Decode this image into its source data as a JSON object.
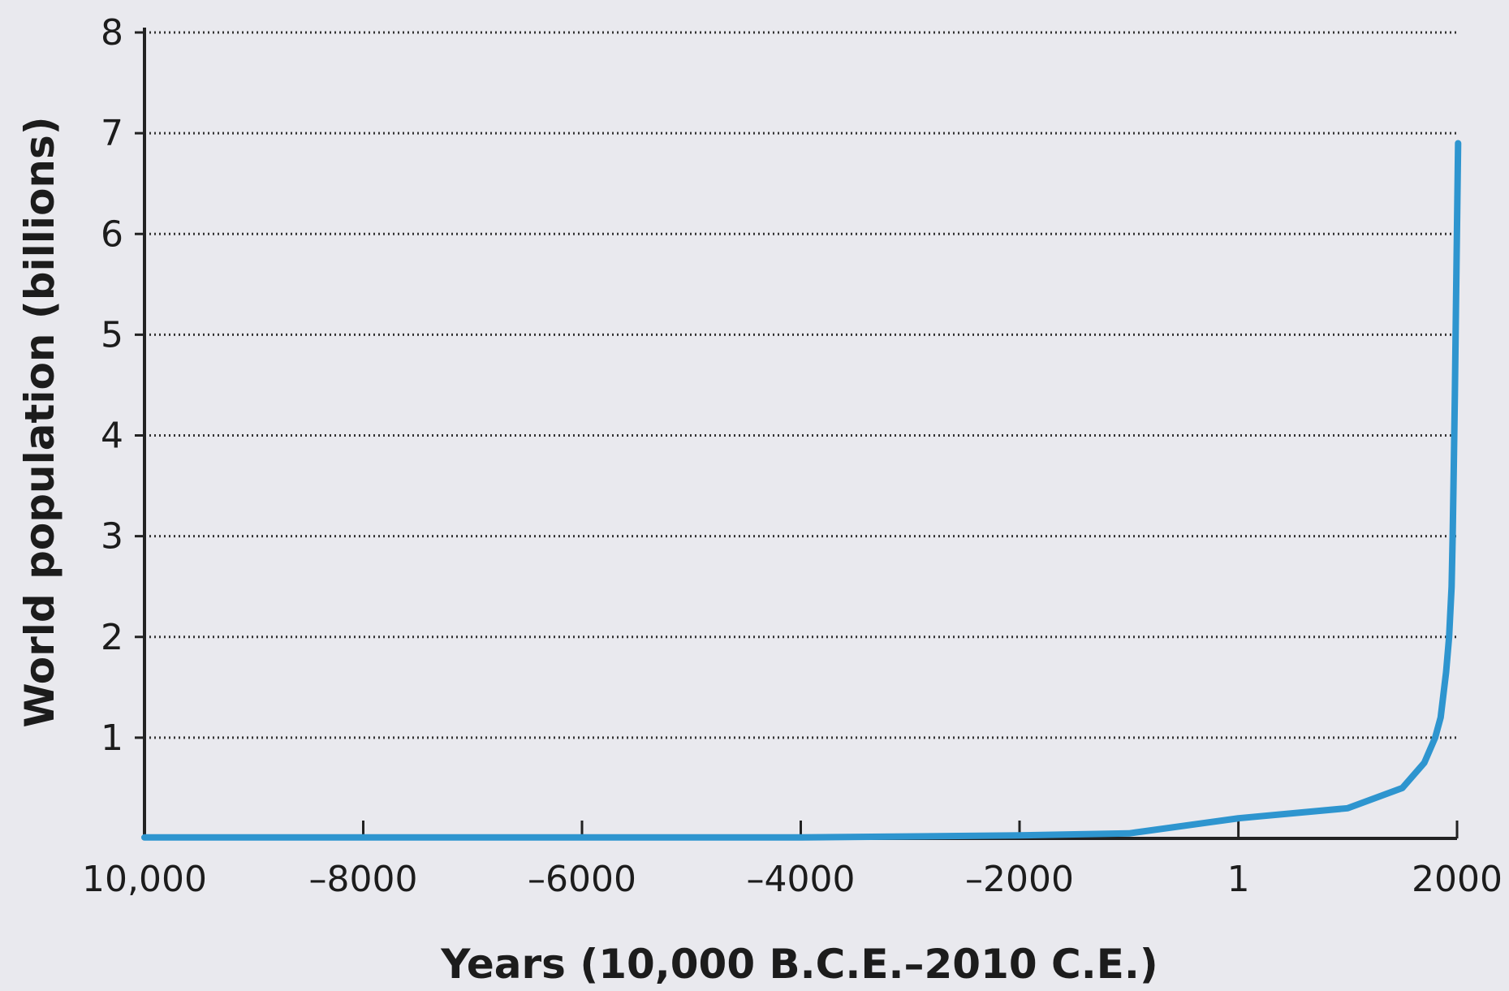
{
  "chart_data": {
    "type": "line",
    "title": "",
    "xlabel": "Years (10,000 B.C.E.–2010 C.E.)",
    "ylabel": "World population (billions)",
    "x_tick_values": [
      -10000,
      -8000,
      -6000,
      -4000,
      -2000,
      1,
      2000
    ],
    "x_tick_labels": [
      "10,000",
      "–8000",
      "–6000",
      "–4000",
      "–2000",
      "1",
      "2000"
    ],
    "y_tick_values": [
      1,
      2,
      3,
      4,
      5,
      6,
      7,
      8
    ],
    "y_tick_labels": [
      "1",
      "2",
      "3",
      "4",
      "5",
      "6",
      "7",
      "8"
    ],
    "xlim": [
      -10000,
      2000
    ],
    "ylim": [
      0,
      8
    ],
    "grid": "horizontal dotted",
    "line_color": "#2e95cf",
    "series": [
      {
        "x": [
          -10000,
          -9000,
          -8000,
          -6000,
          -4000,
          -2000,
          -1000,
          1,
          1000,
          1500,
          1700,
          1800,
          1850,
          1900,
          1927,
          1950,
          1960,
          1970,
          1980,
          1990,
          2000,
          2010
        ],
        "values": [
          0.01,
          0.01,
          0.01,
          0.01,
          0.01,
          0.03,
          0.05,
          0.2,
          0.3,
          0.5,
          0.75,
          1.0,
          1.2,
          1.65,
          2.0,
          2.5,
          3.0,
          3.7,
          4.4,
          5.3,
          6.1,
          6.9
        ]
      }
    ]
  }
}
